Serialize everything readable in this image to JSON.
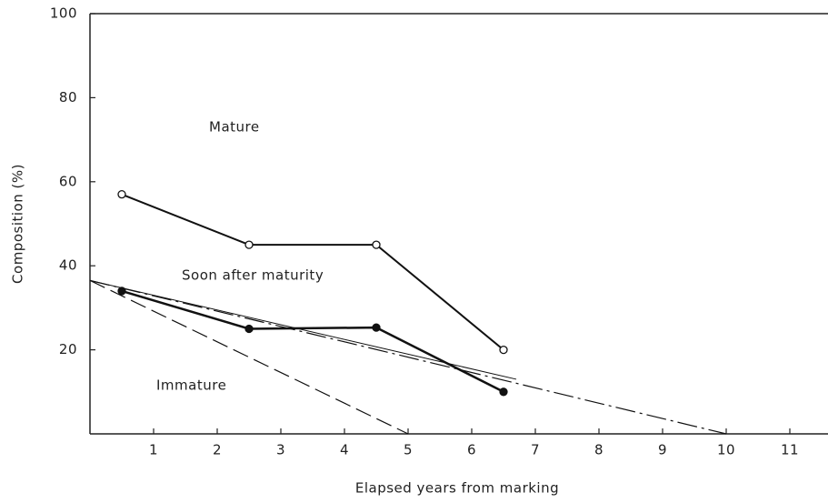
{
  "chart_data": {
    "type": "line",
    "xlabel": "Elapsed years from marking",
    "ylabel": "Composition (%)",
    "xlim": [
      0,
      11.6
    ],
    "ylim": [
      0,
      100
    ],
    "xticks": [
      1,
      2,
      3,
      4,
      5,
      6,
      7,
      8,
      9,
      10,
      11
    ],
    "yticks": [
      20,
      40,
      60,
      80,
      100
    ],
    "series": [
      {
        "x": [
          0.5,
          2.5,
          4.5,
          6.5
        ],
        "values": [
          57,
          45,
          45,
          20
        ],
        "color": "#111111",
        "marker": "open",
        "dash": "solid",
        "width": 2
      },
      {
        "x": [
          0.5,
          2.5,
          4.5,
          6.5
        ],
        "values": [
          34,
          25,
          25.3,
          10
        ],
        "color": "#111111",
        "marker": "filled",
        "dash": "solid",
        "width": 2.5
      },
      {
        "x": [
          0,
          5
        ],
        "values": [
          36.5,
          0
        ],
        "color": "#111111",
        "marker": "none",
        "dash": "dashed",
        "width": 1.2
      },
      {
        "x": [
          0,
          10
        ],
        "values": [
          36.5,
          0
        ],
        "color": "#111111",
        "marker": "none",
        "dash": "dashdot",
        "width": 1.2
      },
      {
        "x": [
          0,
          6.7
        ],
        "values": [
          36.5,
          13
        ],
        "color": "#111111",
        "marker": "none",
        "dash": "solid",
        "width": 1
      }
    ],
    "annotations": [
      "Mature",
      "Soon after maturity",
      "Immature"
    ]
  }
}
